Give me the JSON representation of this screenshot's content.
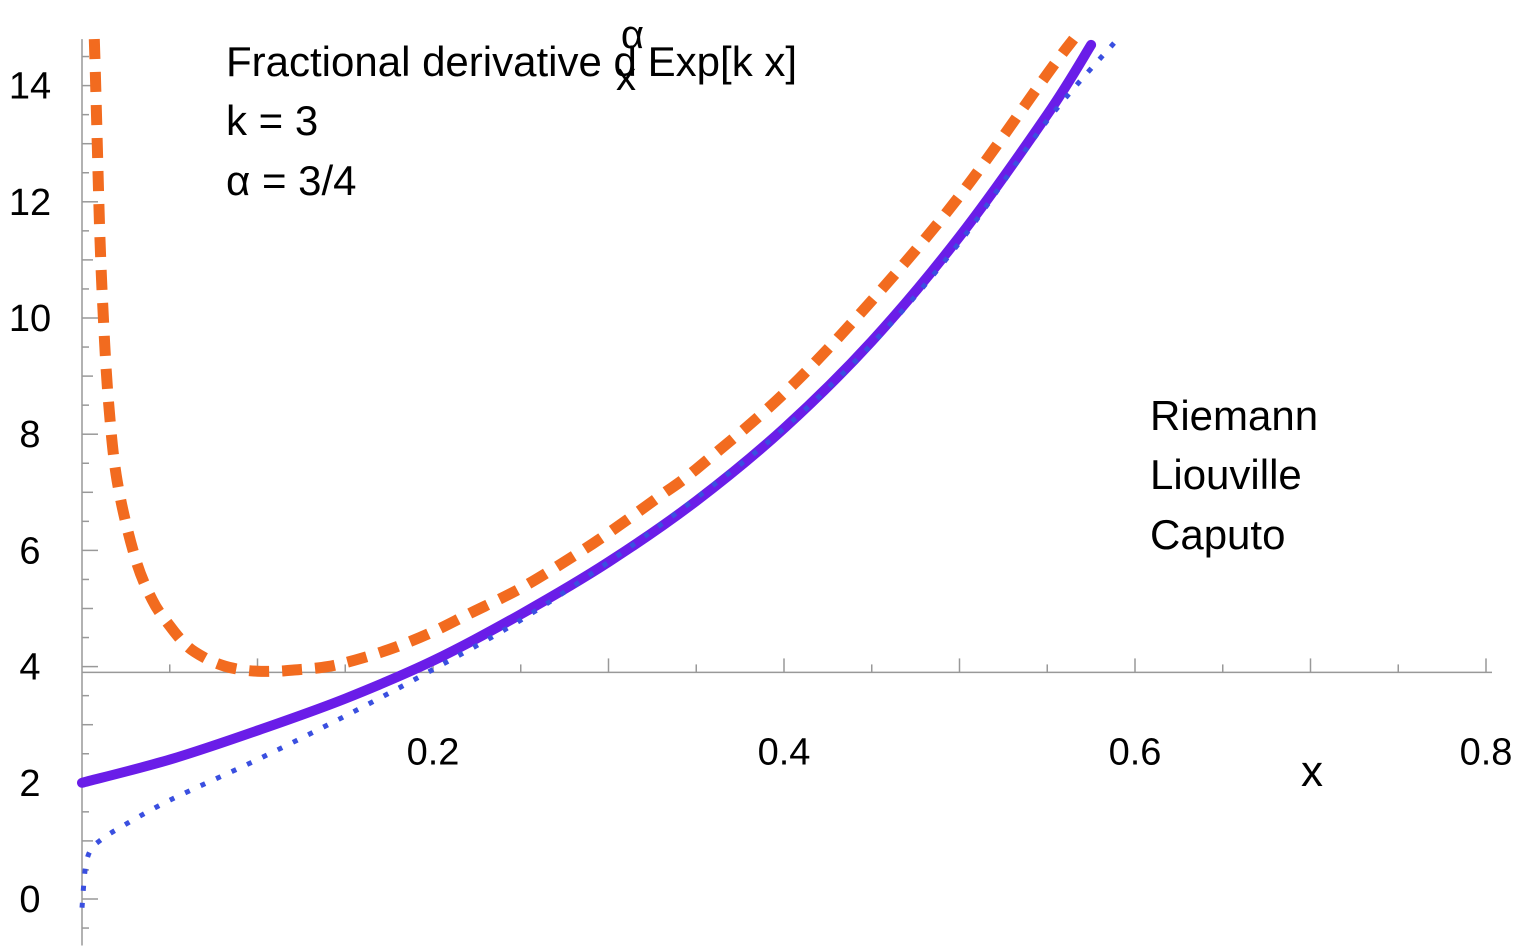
{
  "chart_data": {
    "type": "line",
    "xlabel": "x",
    "ylabel": "",
    "xlim": [
      0,
      0.8
    ],
    "ylim": [
      -0.8,
      14.8
    ],
    "axes_origin": [
      0,
      3.9
    ],
    "x_ticks": [
      {
        "value": 0.2,
        "label": "0.2"
      },
      {
        "value": 0.4,
        "label": "0.4"
      },
      {
        "value": 0.6,
        "label": "0.6"
      },
      {
        "value": 0.8,
        "label": "0.8"
      }
    ],
    "y_ticks": [
      {
        "value": 0,
        "label": "0"
      },
      {
        "value": 2,
        "label": "2"
      },
      {
        "value": 4,
        "label": "4"
      },
      {
        "value": 6,
        "label": "6"
      },
      {
        "value": 8,
        "label": "8"
      },
      {
        "value": 10,
        "label": "10"
      },
      {
        "value": 12,
        "label": "12"
      },
      {
        "value": 14,
        "label": "14"
      }
    ],
    "x_minor_step": 0.05,
    "y_minor_step": 1,
    "annotation_lines": [
      {
        "prefix": "Fractional derivative  d",
        "sup": "α",
        "sub": "x",
        "suffix": " Exp[k x]"
      },
      {
        "text": "k = 3"
      },
      {
        "text": "α = 3/4"
      }
    ],
    "legend_position": "right",
    "series": [
      {
        "name": "Riemann",
        "color": "#f26b1f",
        "style": "dashed",
        "points": [
          [
            0.007,
            14.8
          ],
          [
            0.008,
            13.8
          ],
          [
            0.01,
            11.6
          ],
          [
            0.012,
            10.1
          ],
          [
            0.015,
            8.6
          ],
          [
            0.02,
            7.2
          ],
          [
            0.03,
            5.9
          ],
          [
            0.04,
            5.15
          ],
          [
            0.05,
            4.7
          ],
          [
            0.06,
            4.35
          ],
          [
            0.07,
            4.15
          ],
          [
            0.08,
            4.02
          ],
          [
            0.09,
            3.95
          ],
          [
            0.1,
            3.92
          ],
          [
            0.11,
            3.92
          ],
          [
            0.12,
            3.94
          ],
          [
            0.14,
            4.0
          ],
          [
            0.16,
            4.15
          ],
          [
            0.18,
            4.35
          ],
          [
            0.2,
            4.6
          ],
          [
            0.22,
            4.9
          ],
          [
            0.25,
            5.35
          ],
          [
            0.28,
            5.9
          ],
          [
            0.3,
            6.3
          ],
          [
            0.33,
            6.95
          ],
          [
            0.35,
            7.4
          ],
          [
            0.4,
            8.7
          ],
          [
            0.45,
            10.3
          ],
          [
            0.5,
            12.1
          ],
          [
            0.55,
            14.2
          ],
          [
            0.565,
            14.8
          ]
        ]
      },
      {
        "name": "Liouville",
        "color": "#6a1de8",
        "style": "solid",
        "points": [
          [
            0,
            2.0
          ],
          [
            0.05,
            2.4
          ],
          [
            0.1,
            2.9
          ],
          [
            0.15,
            3.45
          ],
          [
            0.2,
            4.1
          ],
          [
            0.25,
            4.9
          ],
          [
            0.3,
            5.8
          ],
          [
            0.35,
            6.85
          ],
          [
            0.4,
            8.1
          ],
          [
            0.45,
            9.6
          ],
          [
            0.5,
            11.4
          ],
          [
            0.55,
            13.5
          ],
          [
            0.575,
            14.7
          ]
        ]
      },
      {
        "name": "Caputo",
        "color": "#3a4fe0",
        "style": "dotted",
        "points": [
          [
            0,
            -0.15
          ],
          [
            0.002,
            0.55
          ],
          [
            0.005,
            0.85
          ],
          [
            0.01,
            1.0
          ],
          [
            0.02,
            1.2
          ],
          [
            0.05,
            1.7
          ],
          [
            0.1,
            2.4
          ],
          [
            0.15,
            3.15
          ],
          [
            0.2,
            3.95
          ],
          [
            0.25,
            4.8
          ],
          [
            0.3,
            5.8
          ],
          [
            0.35,
            6.9
          ],
          [
            0.4,
            8.1
          ],
          [
            0.45,
            9.55
          ],
          [
            0.5,
            11.3
          ],
          [
            0.55,
            13.4
          ],
          [
            0.59,
            14.8
          ]
        ]
      }
    ]
  }
}
